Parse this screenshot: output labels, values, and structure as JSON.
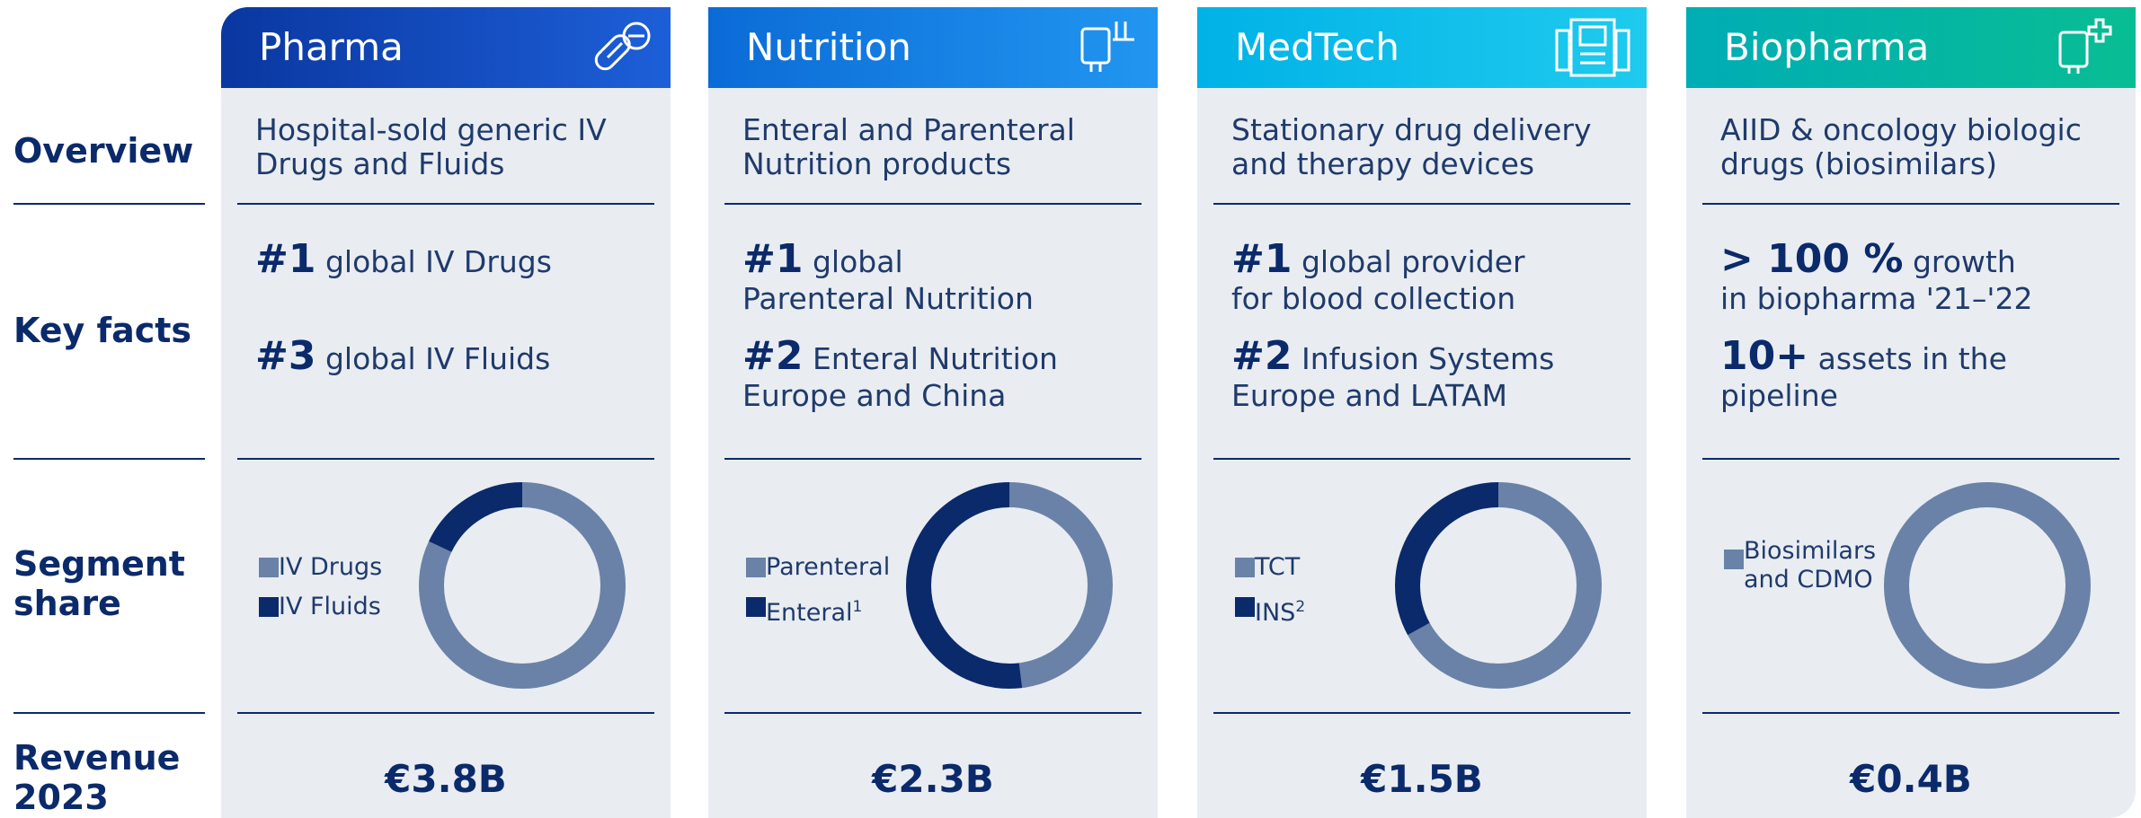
{
  "row_labels": [
    "Overview",
    "Key facts",
    "Segment\nshare",
    "Revenue\n2023"
  ],
  "segments": [
    {
      "name": "Pharma",
      "overview": "Hospital-sold generic IV\nDrugs and Fluids",
      "facts": [
        {
          "rank": "#1",
          "text": "global  IV Drugs"
        },
        {
          "rank": "#3",
          "text": "global IV Fluids"
        }
      ],
      "chart_data": {
        "type": "donut",
        "series": [
          {
            "name": "IV Drugs",
            "color": "#6a82a8",
            "values": [
              82
            ]
          },
          {
            "name": "IV Fluids",
            "color": "#0b2a6b",
            "values": [
              18
            ]
          }
        ]
      },
      "revenue": "€3.8B"
    },
    {
      "name": "Nutrition",
      "overview": "Enteral and Parenteral\nNutrition products",
      "facts": [
        {
          "rank": "#1",
          "text": "global\nParenteral Nutrition"
        },
        {
          "rank": "#2",
          "text": "Enteral Nutrition\nEurope and China"
        }
      ],
      "chart_data": {
        "type": "donut",
        "series": [
          {
            "name": "Parenteral",
            "color": "#6a82a8",
            "values": [
              48
            ]
          },
          {
            "name": "Enteral",
            "note": "1",
            "color": "#0b2a6b",
            "values": [
              52
            ]
          }
        ]
      },
      "revenue": "€2.3B"
    },
    {
      "name": "MedTech",
      "overview": "Stationary drug delivery\nand therapy devices",
      "facts": [
        {
          "rank": "#1",
          "text": "global provider\nfor blood collection"
        },
        {
          "rank": "#2",
          "text": "Infusion Systems\nEurope and LATAM"
        }
      ],
      "chart_data": {
        "type": "donut",
        "series": [
          {
            "name": "TCT",
            "color": "#6a82a8",
            "values": [
              67
            ]
          },
          {
            "name": "INS",
            "note": "2",
            "color": "#0b2a6b",
            "values": [
              33
            ]
          }
        ]
      },
      "revenue": "€1.5B"
    },
    {
      "name": "Biopharma",
      "overview": "AIID & oncology biologic\ndrugs (biosimilars)",
      "facts": [
        {
          "rank": "> 100 %",
          "text": "growth\nin biopharma '21–'22"
        },
        {
          "rank": "10+",
          "text": "assets in the\npipeline"
        }
      ],
      "chart_data": {
        "type": "donut",
        "series": [
          {
            "name": "Biosimilars\nand CDMO",
            "color": "#6a82a8",
            "values": [
              100
            ]
          }
        ]
      },
      "revenue": "€0.4B"
    }
  ]
}
